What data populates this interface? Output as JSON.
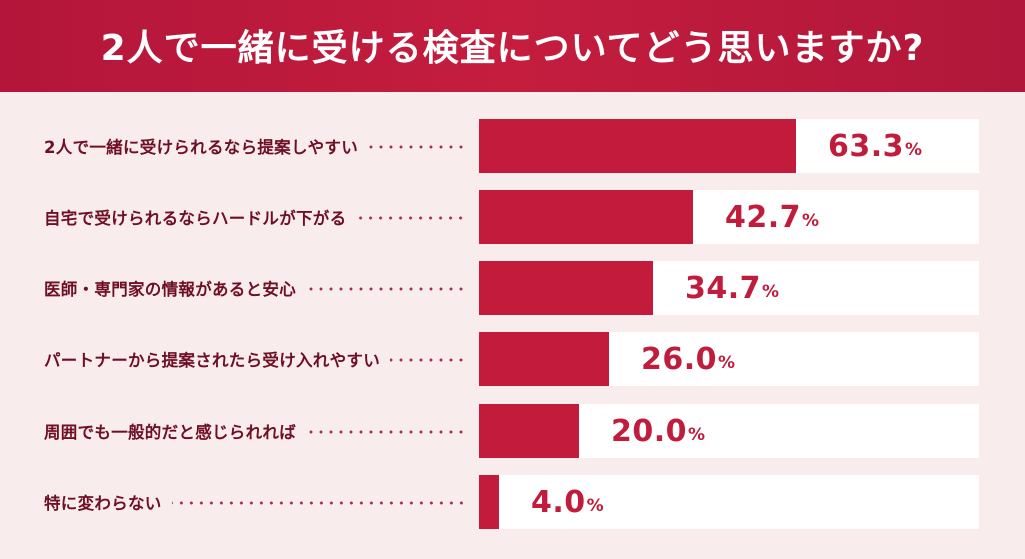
{
  "header": {
    "title": "2人で一緒に受ける検査についてどう思いますか?"
  },
  "colors": {
    "header_bg": "#c21b3b",
    "page_bg": "#f9eced",
    "bar": "#c21b3b",
    "track": "#ffffff",
    "label_text": "#6e0f24",
    "value_text": "#c01c3c"
  },
  "rows": [
    {
      "label": "2人で一緒に受けられるなら提案しやすい",
      "value": "63.3",
      "unit": "%"
    },
    {
      "label": "自宅で受けられるならハードルが下がる",
      "value": "42.7",
      "unit": "%"
    },
    {
      "label": "医師・専門家の情報があると安心",
      "value": "34.7",
      "unit": "%"
    },
    {
      "label": "パートナーから提案されたら受け入れやすい",
      "value": "26.0",
      "unit": "%"
    },
    {
      "label": "周囲でも一般的だと感じられれば",
      "value": "20.0",
      "unit": "%"
    },
    {
      "label": "特に変わらない",
      "value": "4.0",
      "unit": "%"
    }
  ],
  "chart_data": {
    "type": "bar",
    "orientation": "horizontal",
    "title": "2人で一緒に受ける検査についてどう思いますか?",
    "categories": [
      "2人で一緒に受けられるなら提案しやすい",
      "自宅で受けられるならハードルが下がる",
      "医師・専門家の情報があると安心",
      "パートナーから提案されたら受け入れやすい",
      "周囲でも一般的だと感じられれば",
      "特に変わらない"
    ],
    "values": [
      63.3,
      42.7,
      34.7,
      26.0,
      20.0,
      4.0
    ],
    "unit": "%",
    "xlabel": "",
    "ylabel": "",
    "xlim": [
      0,
      100
    ],
    "grid": false,
    "legend": null,
    "data_labels": [
      "63.3%",
      "42.7%",
      "34.7%",
      "26.0%",
      "20.0%",
      "4.0%"
    ]
  }
}
